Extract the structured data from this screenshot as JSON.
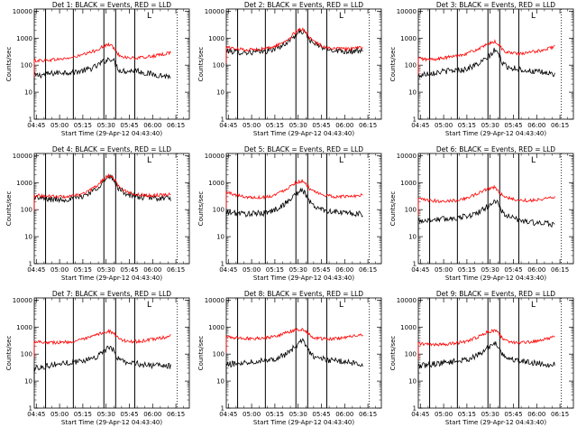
{
  "figure": {
    "colors": {
      "events": "#000000",
      "lld": "#ff0000",
      "axis": "#000000",
      "background": "#ffffff"
    },
    "xlabel": "Start Time (29-Apr-12 04:43:40)",
    "ylabel": "Counts/sec",
    "x_tick_labels": [
      "04:45",
      "05:00",
      "05:15",
      "05:30",
      "05:45",
      "06:00",
      "06:15"
    ],
    "y_tick_labels": [
      "1",
      "10",
      "100",
      "1000",
      "10000"
    ],
    "corner_glyph": "L"
  },
  "chart_data": [
    {
      "type": "line",
      "title": "Det 1: BLACK = Events, RED = LLD",
      "det": 1,
      "x_unit": "minutes after 04:43:40",
      "y_scale": "log",
      "ylim": [
        1,
        12000
      ],
      "xlim": [
        0,
        100
      ],
      "solid_markers": [
        7.3,
        25.2,
        44.9,
        52.5,
        64.8
      ],
      "dotted_markers": [
        92.2
      ],
      "x": [
        0,
        6,
        12,
        18,
        24,
        30,
        35,
        40,
        43,
        47,
        49,
        51,
        53,
        55,
        60,
        66,
        72,
        78,
        84,
        88
      ],
      "series": [
        {
          "name": "BLACK = Events",
          "y": [
            40,
            45,
            50,
            55,
            55,
            60,
            70,
            90,
            120,
            160,
            180,
            150,
            95,
            65,
            60,
            65,
            50,
            45,
            40,
            38
          ]
        },
        {
          "name": "RED = LLD",
          "y": [
            150,
            150,
            160,
            170,
            190,
            230,
            280,
            360,
            450,
            560,
            580,
            450,
            300,
            230,
            190,
            180,
            200,
            220,
            260,
            300
          ]
        }
      ]
    },
    {
      "type": "line",
      "title": "Det 2: BLACK = Events, RED = LLD",
      "det": 2,
      "x_unit": "minutes after 04:43:40",
      "y_scale": "log",
      "ylim": [
        1,
        12000
      ],
      "xlim": [
        0,
        100
      ],
      "solid_markers": [
        7.3,
        25.2,
        44.9,
        52.5,
        64.8
      ],
      "dotted_markers": [
        92.2
      ],
      "x": [
        0,
        6,
        12,
        18,
        24,
        30,
        35,
        40,
        43,
        47,
        49,
        51,
        53,
        55,
        60,
        66,
        72,
        78,
        84,
        88
      ],
      "series": [
        {
          "name": "BLACK = Events",
          "y": [
            350,
            310,
            300,
            300,
            320,
            380,
            500,
            750,
            1100,
            1600,
            1800,
            1500,
            1050,
            700,
            500,
            380,
            350,
            330,
            330,
            320
          ]
        },
        {
          "name": "RED = LLD",
          "y": [
            480,
            400,
            380,
            380,
            400,
            470,
            620,
            900,
            1350,
            2000,
            2200,
            1800,
            1250,
            850,
            580,
            430,
            400,
            400,
            420,
            450
          ]
        }
      ]
    },
    {
      "type": "line",
      "title": "Det 3: BLACK = Events, RED = LLD",
      "det": 3,
      "x_unit": "minutes after 04:43:40",
      "y_scale": "log",
      "ylim": [
        1,
        12000
      ],
      "xlim": [
        0,
        100
      ],
      "solid_markers": [
        7.3,
        25.2,
        44.9,
        52.5,
        64.8
      ],
      "dotted_markers": [
        92.2
      ],
      "x": [
        0,
        6,
        12,
        18,
        24,
        30,
        35,
        40,
        43,
        47,
        49,
        51,
        53,
        55,
        60,
        66,
        72,
        78,
        84,
        88
      ],
      "series": [
        {
          "name": "BLACK = Events",
          "y": [
            40,
            50,
            55,
            60,
            65,
            70,
            90,
            120,
            160,
            250,
            350,
            300,
            180,
            100,
            80,
            70,
            60,
            55,
            50,
            45
          ]
        },
        {
          "name": "RED = LLD",
          "y": [
            180,
            160,
            170,
            190,
            220,
            260,
            330,
            420,
            520,
            680,
            750,
            650,
            480,
            340,
            280,
            260,
            300,
            340,
            420,
            500
          ]
        }
      ]
    },
    {
      "type": "line",
      "title": "Det 4: BLACK = Events, RED = LLD",
      "det": 4,
      "x_unit": "minutes after 04:43:40",
      "y_scale": "log",
      "ylim": [
        1,
        12000
      ],
      "xlim": [
        0,
        100
      ],
      "solid_markers": [
        7.3,
        25.2,
        44.9,
        52.5,
        64.8
      ],
      "dotted_markers": [
        92.2
      ],
      "x": [
        0,
        6,
        12,
        18,
        24,
        30,
        35,
        40,
        43,
        47,
        49,
        51,
        53,
        55,
        60,
        66,
        72,
        78,
        84,
        88
      ],
      "series": [
        {
          "name": "BLACK = Events",
          "y": [
            300,
            250,
            240,
            240,
            250,
            300,
            400,
            600,
            900,
            1400,
            1600,
            1300,
            850,
            550,
            380,
            300,
            280,
            270,
            260,
            260
          ]
        },
        {
          "name": "RED = LLD",
          "y": [
            350,
            320,
            310,
            300,
            310,
            360,
            480,
            720,
            1100,
            1700,
            1900,
            1550,
            1000,
            650,
            450,
            360,
            340,
            340,
            360,
            400
          ]
        }
      ]
    },
    {
      "type": "line",
      "title": "Det 5: BLACK = Events, RED = LLD",
      "det": 5,
      "x_unit": "minutes after 04:43:40",
      "y_scale": "log",
      "ylim": [
        1,
        12000
      ],
      "xlim": [
        0,
        100
      ],
      "solid_markers": [
        7.3,
        25.2,
        44.9,
        52.5,
        64.8
      ],
      "dotted_markers": [
        92.2
      ],
      "x": [
        0,
        6,
        12,
        18,
        24,
        30,
        35,
        40,
        43,
        47,
        49,
        51,
        53,
        55,
        60,
        66,
        72,
        78,
        84,
        88
      ],
      "series": [
        {
          "name": "BLACK = Events",
          "y": [
            80,
            75,
            70,
            70,
            75,
            90,
            130,
            200,
            320,
            450,
            500,
            400,
            250,
            150,
            110,
            90,
            80,
            75,
            70,
            65
          ]
        },
        {
          "name": "RED = LLD",
          "y": [
            450,
            350,
            300,
            280,
            290,
            330,
            450,
            650,
            900,
            1100,
            1150,
            950,
            700,
            500,
            380,
            320,
            300,
            310,
            330,
            350
          ]
        }
      ]
    },
    {
      "type": "line",
      "title": "Det 6: BLACK = Events, RED = LLD",
      "det": 6,
      "x_unit": "minutes after 04:43:40",
      "y_scale": "log",
      "ylim": [
        1,
        12000
      ],
      "xlim": [
        0,
        100
      ],
      "solid_markers": [
        7.3,
        25.2,
        44.9,
        52.5,
        64.8
      ],
      "dotted_markers": [
        92.2
      ],
      "x": [
        0,
        6,
        12,
        18,
        24,
        30,
        35,
        40,
        43,
        47,
        49,
        51,
        53,
        55,
        60,
        66,
        72,
        78,
        84,
        88
      ],
      "series": [
        {
          "name": "BLACK = Events",
          "y": [
            40,
            40,
            45,
            45,
            50,
            55,
            65,
            85,
            110,
            170,
            200,
            180,
            110,
            70,
            50,
            40,
            35,
            30,
            30,
            28
          ]
        },
        {
          "name": "RED = LLD",
          "y": [
            250,
            220,
            210,
            210,
            220,
            260,
            330,
            430,
            550,
            650,
            680,
            560,
            400,
            300,
            250,
            220,
            220,
            240,
            270,
            300
          ]
        }
      ]
    },
    {
      "type": "line",
      "title": "Det 7: BLACK = Events, RED = LLD",
      "det": 7,
      "x_unit": "minutes after 04:43:40",
      "y_scale": "log",
      "ylim": [
        1,
        12000
      ],
      "xlim": [
        0,
        100
      ],
      "solid_markers": [
        7.3,
        25.2,
        44.9,
        52.5,
        64.8
      ],
      "dotted_markers": [
        92.2
      ],
      "x": [
        0,
        6,
        12,
        18,
        24,
        30,
        35,
        40,
        43,
        47,
        49,
        51,
        53,
        55,
        60,
        66,
        72,
        78,
        84,
        88
      ],
      "series": [
        {
          "name": "BLACK = Events",
          "y": [
            30,
            35,
            40,
            45,
            50,
            55,
            65,
            80,
            110,
            150,
            170,
            140,
            90,
            60,
            50,
            45,
            40,
            38,
            36,
            35
          ]
        },
        {
          "name": "RED = LLD",
          "y": [
            300,
            280,
            270,
            270,
            290,
            330,
            400,
            500,
            600,
            680,
            700,
            600,
            450,
            350,
            300,
            290,
            320,
            360,
            420,
            480
          ]
        }
      ]
    },
    {
      "type": "line",
      "title": "Det 8: BLACK = Events, RED = LLD",
      "det": 8,
      "x_unit": "minutes after 04:43:40",
      "y_scale": "log",
      "ylim": [
        1,
        12000
      ],
      "xlim": [
        0,
        100
      ],
      "solid_markers": [
        7.3,
        25.2,
        44.9,
        52.5,
        64.8
      ],
      "dotted_markers": [
        92.2
      ],
      "x": [
        0,
        6,
        12,
        18,
        24,
        30,
        35,
        40,
        43,
        47,
        49,
        51,
        53,
        55,
        60,
        66,
        72,
        78,
        84,
        88
      ],
      "series": [
        {
          "name": "BLACK = Events",
          "y": [
            40,
            45,
            50,
            55,
            60,
            65,
            80,
            110,
            160,
            250,
            300,
            250,
            150,
            90,
            70,
            60,
            55,
            50,
            45,
            42
          ]
        },
        {
          "name": "RED = LLD",
          "y": [
            450,
            400,
            380,
            380,
            400,
            440,
            530,
            650,
            760,
            820,
            830,
            720,
            560,
            430,
            380,
            360,
            380,
            420,
            480,
            550
          ]
        }
      ]
    },
    {
      "type": "line",
      "title": "Det 9: BLACK = Events, RED = LLD",
      "det": 9,
      "x_unit": "minutes after 04:43:40",
      "y_scale": "log",
      "ylim": [
        1,
        12000
      ],
      "xlim": [
        0,
        100
      ],
      "solid_markers": [
        7.3,
        25.2,
        44.9,
        52.5,
        64.8
      ],
      "dotted_markers": [
        92.2
      ],
      "x": [
        0,
        6,
        12,
        18,
        24,
        30,
        35,
        40,
        43,
        47,
        49,
        51,
        53,
        55,
        60,
        66,
        72,
        78,
        84,
        88
      ],
      "series": [
        {
          "name": "BLACK = Events",
          "y": [
            35,
            40,
            45,
            50,
            55,
            60,
            75,
            100,
            140,
            220,
            260,
            220,
            140,
            85,
            65,
            55,
            50,
            45,
            42,
            40
          ]
        },
        {
          "name": "RED = LLD",
          "y": [
            250,
            230,
            220,
            230,
            250,
            290,
            360,
            470,
            600,
            720,
            760,
            640,
            460,
            340,
            280,
            260,
            280,
            320,
            380,
            450
          ]
        }
      ]
    }
  ]
}
